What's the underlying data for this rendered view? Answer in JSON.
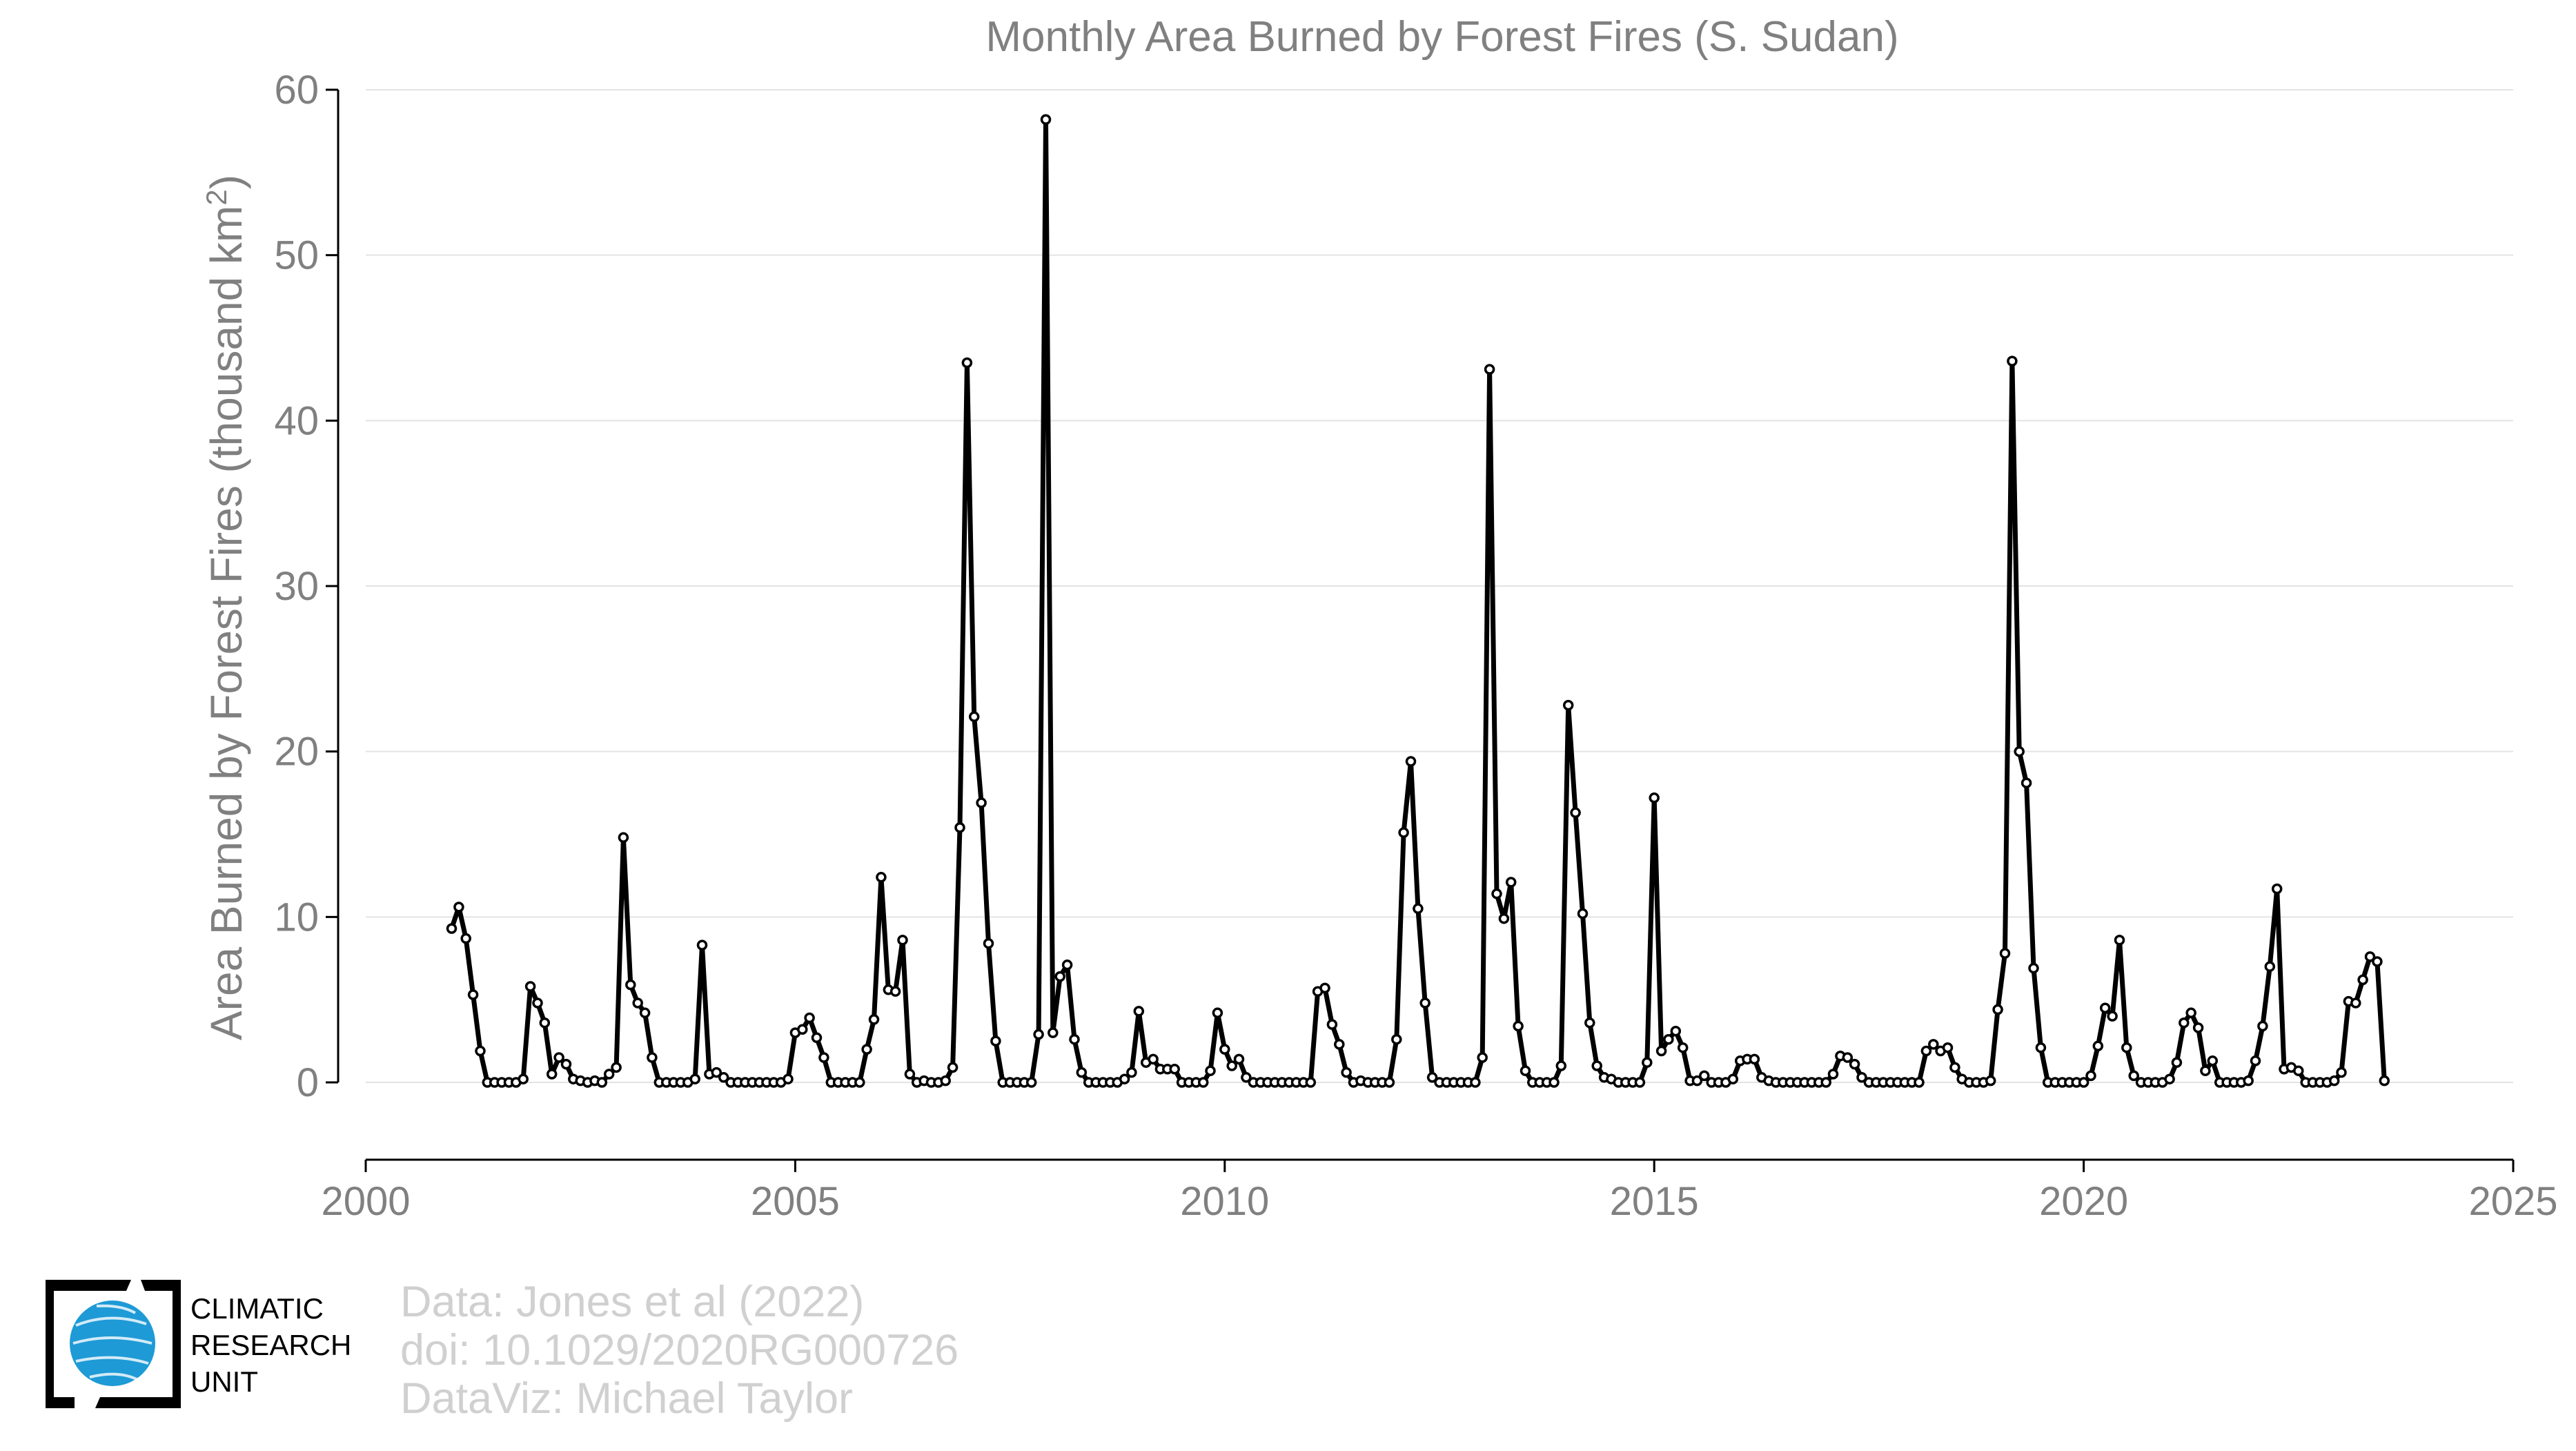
{
  "chart_data": {
    "type": "line",
    "title": "Monthly Area Burned by Forest Fires (S. Sudan)",
    "ylabel": "Area Burned by Forest Fires (thousand km²)",
    "xlabel": "",
    "xlim": [
      2000,
      2025
    ],
    "ylim": [
      -4.5,
      60
    ],
    "xticks": [
      "2000",
      "2005",
      "2010",
      "2015",
      "2020",
      "2025"
    ],
    "yticks": [
      "0",
      "10",
      "20",
      "30",
      "40",
      "50",
      "60"
    ],
    "grid": "horizontal",
    "line_color": "#000000",
    "marker_fill": "#ffffff",
    "series": [
      {
        "x_start": 2001.0,
        "x_step": 0.083333,
        "values": [
          9.3,
          10.6,
          8.7,
          5.3,
          1.9,
          0.0,
          0.0,
          0.0,
          0.0,
          0.0,
          0.2,
          5.8,
          4.8,
          3.6,
          0.5,
          1.5,
          1.1,
          0.2,
          0.1,
          0.0,
          0.1,
          0.0,
          0.5,
          0.9,
          14.8,
          5.9,
          4.8,
          4.2,
          1.5,
          0.0,
          0.0,
          0.0,
          0.0,
          0.0,
          0.2,
          8.3,
          0.5,
          0.6,
          0.3,
          0.0,
          0.0,
          0.0,
          0.0,
          0.0,
          0.0,
          0.0,
          0.0,
          0.2,
          3.0,
          3.2,
          3.9,
          2.7,
          1.5,
          0.0,
          0.0,
          0.0,
          0.0,
          0.0,
          2.0,
          3.8,
          12.4,
          5.6,
          5.5,
          8.6,
          0.5,
          0.0,
          0.1,
          0.0,
          0.0,
          0.1,
          0.9,
          15.4,
          43.5,
          22.1,
          16.9,
          8.4,
          2.5,
          0.0,
          0.0,
          0.0,
          0.0,
          0.0,
          2.9,
          58.2,
          3.0,
          6.4,
          7.1,
          2.6,
          0.6,
          0.0,
          0.0,
          0.0,
          0.0,
          0.0,
          0.2,
          0.6,
          4.3,
          1.2,
          1.4,
          0.8,
          0.8,
          0.8,
          0.0,
          0.0,
          0.0,
          0.0,
          0.7,
          4.2,
          2.0,
          1.0,
          1.4,
          0.3,
          0.0,
          0.0,
          0.0,
          0.0,
          0.0,
          0.0,
          0.0,
          0.0,
          0.0,
          5.5,
          5.7,
          3.5,
          2.3,
          0.6,
          0.0,
          0.1,
          0.0,
          0.0,
          0.0,
          0.0,
          2.6,
          15.1,
          19.4,
          10.5,
          4.8,
          0.3,
          0.0,
          0.0,
          0.0,
          0.0,
          0.0,
          0.0,
          1.5,
          43.1,
          11.4,
          9.9,
          12.1,
          3.4,
          0.7,
          0.0,
          0.0,
          0.0,
          0.0,
          1.0,
          22.8,
          16.3,
          10.2,
          3.6,
          1.0,
          0.3,
          0.2,
          0.0,
          0.0,
          0.0,
          0.0,
          1.2,
          17.2,
          1.9,
          2.6,
          3.1,
          2.1,
          0.1,
          0.1,
          0.4,
          0.0,
          0.0,
          0.0,
          0.2,
          1.3,
          1.4,
          1.4,
          0.3,
          0.1,
          0.0,
          0.0,
          0.0,
          0.0,
          0.0,
          0.0,
          0.0,
          0.0,
          0.5,
          1.6,
          1.5,
          1.1,
          0.3,
          0.0,
          0.0,
          0.0,
          0.0,
          0.0,
          0.0,
          0.0,
          0.0,
          1.9,
          2.3,
          1.9,
          2.1,
          0.9,
          0.2,
          0.0,
          0.0,
          0.0,
          0.1,
          4.4,
          7.8,
          43.6,
          20.0,
          18.1,
          6.9,
          2.1,
          0.0,
          0.0,
          0.0,
          0.0,
          0.0,
          0.0,
          0.4,
          2.2,
          4.5,
          4.0,
          8.6,
          2.1,
          0.4,
          0.0,
          0.0,
          0.0,
          0.0,
          0.2,
          1.2,
          3.6,
          4.2,
          3.3,
          0.7,
          1.3,
          0.0,
          0.0,
          0.0,
          0.0,
          0.1,
          1.3,
          3.4,
          7.0,
          11.7,
          0.8,
          0.9,
          0.7,
          0.0,
          0.0,
          0.0,
          0.0,
          0.1,
          0.6,
          4.9,
          4.8,
          6.2,
          7.6,
          7.3,
          0.1
        ]
      }
    ]
  },
  "credits": {
    "line1": "Data: Jones et al (2022)",
    "line2": "doi: 10.1029/2020RG000726",
    "line3": "DataViz: Michael Taylor"
  },
  "logo": {
    "line1": "CLIMATIC",
    "line2": "RESEARCH",
    "line3": "UNIT",
    "globe_color": "#1e9ad6"
  }
}
